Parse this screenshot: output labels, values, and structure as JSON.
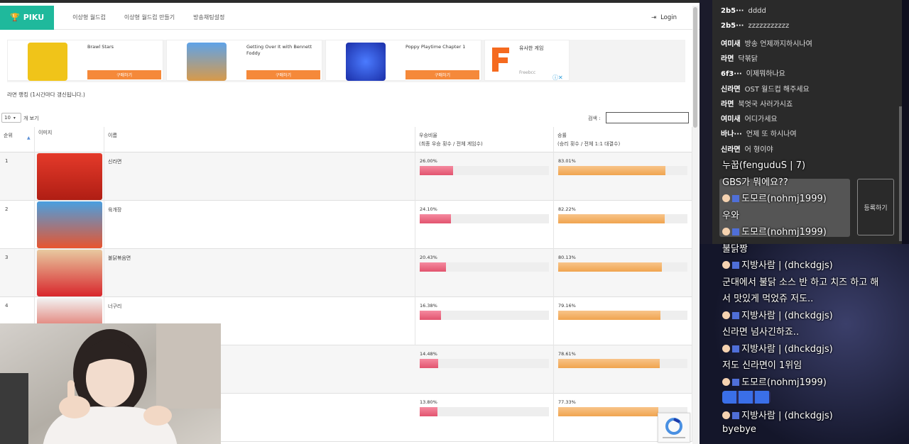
{
  "site": {
    "brand": "PIKU",
    "nav": [
      "이상형 월드컵",
      "이상형 월드컵 만들기",
      "방송채팅설정"
    ],
    "login": "Login"
  },
  "ads": [
    {
      "title": "Brawl Stars",
      "buy": "구매하기",
      "color": "#f0c419"
    },
    {
      "title": "Getting Over It with Bennett Foddy",
      "buy": "구매하기",
      "color": "#3a7bd5"
    },
    {
      "title": "Poppy Playtime Chapter 1",
      "buy": "구매하기",
      "color": "#2a5de0"
    },
    {
      "title": "유사한 게임",
      "sub": "Freebcc",
      "color": "#f56a1f"
    }
  ],
  "ranking_title": "라면 랭킹 (1시간마다 갱신됩니다.)",
  "table_ctrl": {
    "length": "10",
    "length_label": "개 보기",
    "search_label": "검색 :"
  },
  "columns": {
    "rank": "순위",
    "image": "이미지",
    "name": "이름",
    "win_rate": "우승비율",
    "win_rate_sub": "(최종 우승 횟수 / 전체 게임수)",
    "victory": "승률",
    "victory_sub": "(승리 횟수 / 전체 1:1 대결수)"
  },
  "rows": [
    {
      "rank": "1",
      "name": "신라면",
      "win": "26.00%",
      "win_v": 26.0,
      "vic": "83.01%",
      "vic_v": 83.01
    },
    {
      "rank": "2",
      "name": "육개장",
      "win": "24.10%",
      "win_v": 24.1,
      "vic": "82.22%",
      "vic_v": 82.22
    },
    {
      "rank": "3",
      "name": "불닭볶음면",
      "win": "20.43%",
      "win_v": 20.43,
      "vic": "80.13%",
      "vic_v": 80.13
    },
    {
      "rank": "4",
      "name": "너구리",
      "win": "16.38%",
      "win_v": 16.38,
      "vic": "79.16%",
      "vic_v": 79.16
    },
    {
      "rank": "",
      "name": "",
      "win": "14.48%",
      "win_v": 14.48,
      "vic": "78.61%",
      "vic_v": 78.61
    },
    {
      "rank": "",
      "name": "",
      "win": "13.80%",
      "win_v": 13.8,
      "vic": "77.33%",
      "vic_v": 77.33
    }
  ],
  "chat": [
    {
      "user": "2b5···",
      "msg": "dddd"
    },
    {
      "user": "2b5···",
      "msg": "zzzzzzzzzzz"
    },
    {
      "user": "여미새",
      "msg": "방송 언제까지하시나여"
    },
    {
      "user": "라면",
      "msg": "닥볶닭"
    },
    {
      "user": "6f3···",
      "msg": "이제뭐하나요"
    },
    {
      "user": "신라면",
      "msg": "OST 월드컵 해주세요"
    },
    {
      "user": "라면",
      "msg": "북엇국 사러가시죠"
    },
    {
      "user": "여미새",
      "msg": "어디가세요"
    },
    {
      "user": "바나···",
      "msg": "언제 또 하시나여"
    },
    {
      "user": "신라면",
      "msg": "어 형이야"
    }
  ],
  "chat_register": "등록하기",
  "overlay": [
    {
      "text": "누꿉(fenguduS | 7)"
    },
    {
      "text": "GBS가 뭐에요??"
    },
    {
      "text": "도모르(nohmj1999)",
      "user": true
    },
    {
      "text": "우와"
    },
    {
      "text": "도모르(nohmj1999)",
      "user": true
    },
    {
      "text": "불닭짱"
    },
    {
      "text": "지방사람 | (dhckdgjs)",
      "user": true
    },
    {
      "text": "군대에서 불닭 소스 반 하고 치즈 하고 해"
    },
    {
      "text": "서 맛있게 먹었쥬 저도.."
    },
    {
      "text": "지방사람 | (dhckdgjs)",
      "user": true
    },
    {
      "text": "신라면 넘사긴하죠.."
    },
    {
      "text": "지방사람 | (dhckdgjs)",
      "user": true
    },
    {
      "text": "저도 신라면이 1위임"
    },
    {
      "text": "도모르(nohmj1999)",
      "user": true
    },
    {
      "text": "",
      "emotes": true
    },
    {
      "text": "지방사람 | (dhckdgjs)",
      "user": true
    },
    {
      "text": "byebye"
    }
  ]
}
